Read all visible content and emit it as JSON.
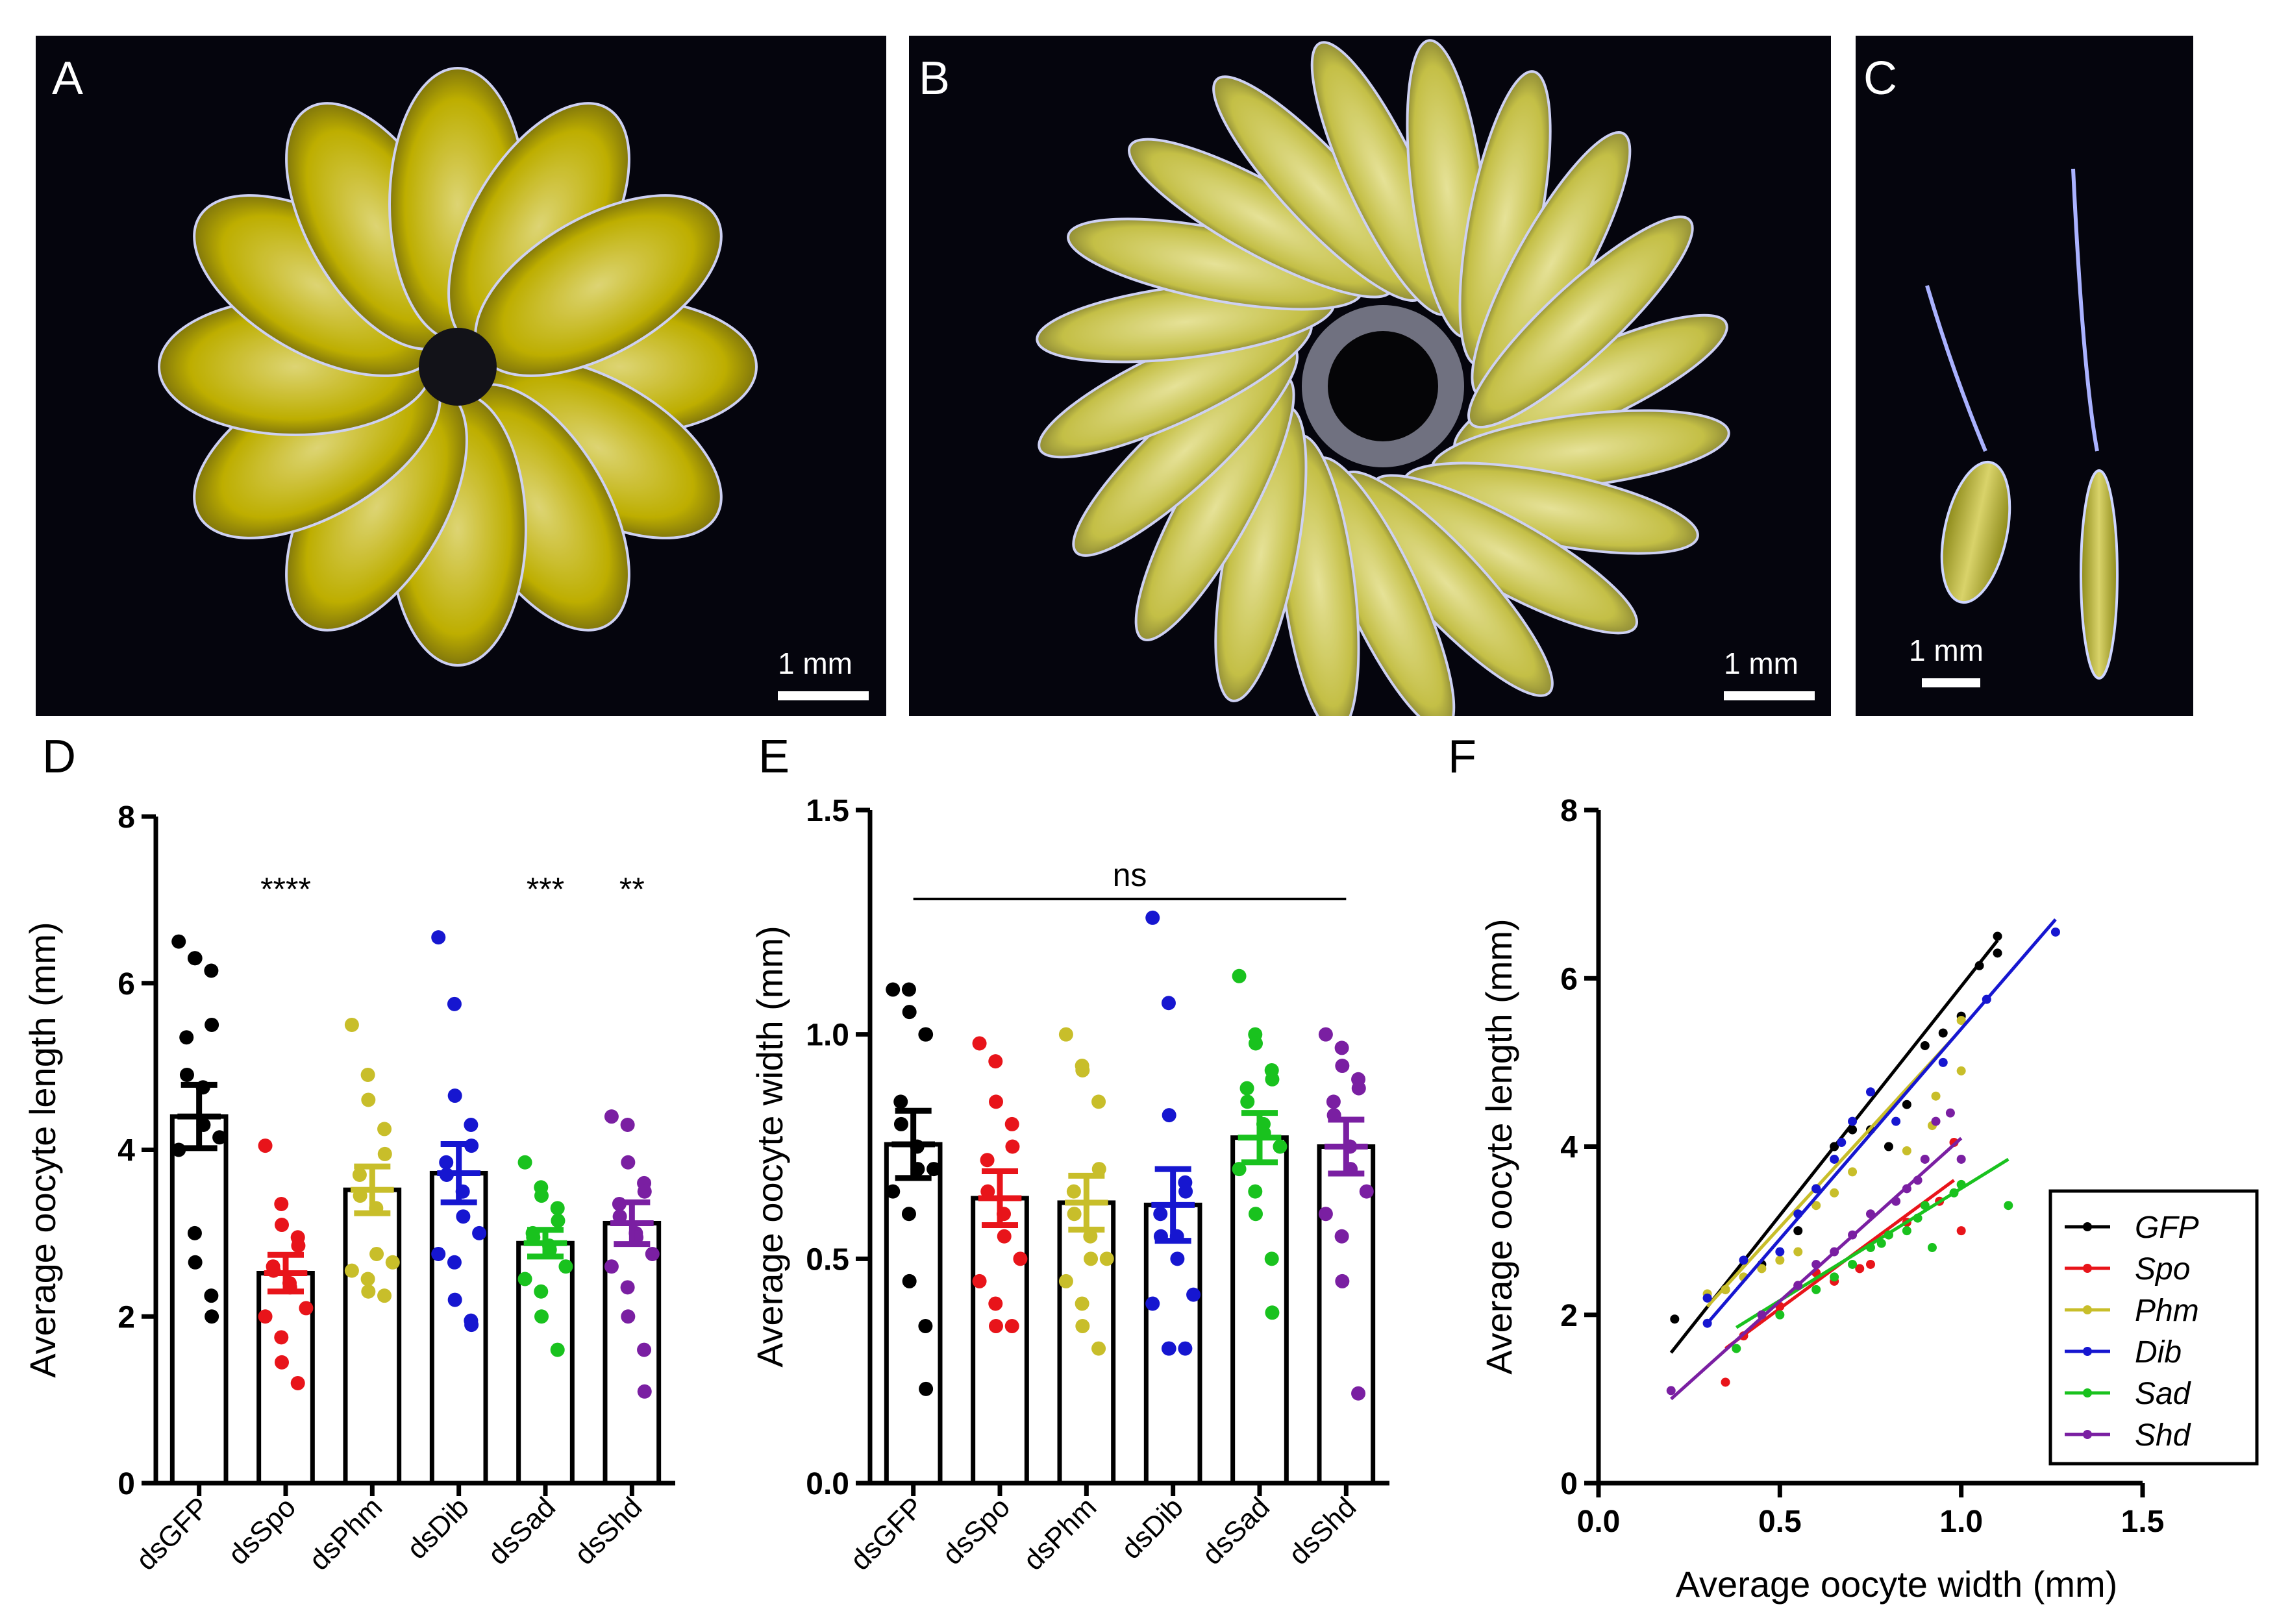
{
  "photos": [
    {
      "letter": "A",
      "scale_label": "1 mm",
      "description_color": "#c8b400"
    },
    {
      "letter": "B",
      "scale_label": "1 mm",
      "description_color": "#c9c45a"
    },
    {
      "letter": "C",
      "scale_label": "1 mm",
      "description_color": "#c0c06a"
    }
  ],
  "panel_letters": {
    "d": "D",
    "e": "E",
    "f": "F"
  },
  "groups": [
    "dsGFP",
    "dsSpo",
    "dsPhm",
    "dsDib",
    "dsSad",
    "dsShd"
  ],
  "colors": [
    "#000000",
    "#e8141a",
    "#c8be2a",
    "#1616d0",
    "#19c21e",
    "#7a1fa2"
  ],
  "chart_data": [
    {
      "id": "D",
      "type": "bar",
      "ylabel": "Average oocyte length (mm)",
      "ylim": [
        0,
        8
      ],
      "yticks": [
        "0",
        "2",
        "4",
        "6",
        "8"
      ],
      "categories": [
        "dsGFP",
        "dsSpo",
        "dsPhm",
        "dsDib",
        "dsSad",
        "dsShd"
      ],
      "means": [
        4.4,
        2.52,
        3.52,
        3.72,
        2.88,
        3.12
      ],
      "sem": [
        0.38,
        0.22,
        0.28,
        0.35,
        0.16,
        0.25
      ],
      "significance": [
        "",
        "****",
        "",
        "",
        "***",
        "**"
      ],
      "points": [
        [
          6.5,
          6.3,
          6.3,
          6.15,
          5.5,
          5.35,
          4.9,
          4.75,
          4.3,
          4.15,
          4.0,
          3.0,
          2.65,
          2.25,
          2.0
        ],
        [
          4.05,
          3.35,
          3.1,
          2.95,
          2.85,
          2.6,
          2.55,
          2.4,
          2.35,
          2.1,
          2.0,
          1.75,
          1.45,
          1.2
        ],
        [
          5.5,
          4.9,
          4.6,
          4.25,
          3.95,
          3.7,
          3.45,
          3.3,
          2.75,
          2.65,
          2.55,
          2.45,
          2.3,
          2.25
        ],
        [
          6.55,
          5.75,
          4.65,
          4.3,
          4.05,
          3.85,
          3.7,
          3.5,
          3.2,
          3.0,
          2.75,
          2.65,
          2.2,
          1.95,
          1.9
        ],
        [
          3.85,
          3.55,
          3.45,
          3.3,
          3.15,
          3.0,
          2.95,
          2.85,
          2.8,
          2.6,
          2.45,
          2.3,
          2.0,
          1.6
        ],
        [
          4.4,
          4.3,
          3.85,
          3.6,
          3.5,
          3.35,
          3.2,
          3.0,
          2.95,
          2.75,
          2.6,
          2.35,
          2.0,
          1.6,
          1.1
        ]
      ]
    },
    {
      "id": "E",
      "type": "bar",
      "ylabel": "Average oocyte width (mm)",
      "ylim": [
        0,
        1.5
      ],
      "yticks": [
        "0.0",
        "0.5",
        "1.0",
        "1.5"
      ],
      "categories": [
        "dsGFP",
        "dsSpo",
        "dsPhm",
        "dsDib",
        "dsSad",
        "dsShd"
      ],
      "means": [
        0.755,
        0.635,
        0.625,
        0.62,
        0.77,
        0.75
      ],
      "sem": [
        0.075,
        0.06,
        0.06,
        0.08,
        0.055,
        0.06
      ],
      "annotation": "ns",
      "points": [
        [
          1.1,
          1.1,
          1.05,
          1.0,
          1.0,
          0.85,
          0.8,
          0.75,
          0.7,
          0.7,
          0.65,
          0.6,
          0.45,
          0.35,
          0.21
        ],
        [
          0.98,
          0.94,
          0.85,
          0.8,
          0.75,
          0.72,
          0.65,
          0.6,
          0.55,
          0.5,
          0.45,
          0.4,
          0.35,
          0.35
        ],
        [
          1.0,
          0.93,
          0.92,
          0.85,
          0.7,
          0.65,
          0.6,
          0.55,
          0.5,
          0.5,
          0.45,
          0.4,
          0.35,
          0.3
        ],
        [
          1.26,
          1.07,
          0.82,
          0.67,
          0.65,
          0.6,
          0.55,
          0.55,
          0.5,
          0.42,
          0.4,
          0.3,
          0.3,
          0.3
        ],
        [
          1.13,
          1.0,
          0.98,
          0.92,
          0.9,
          0.88,
          0.85,
          0.8,
          0.78,
          0.75,
          0.7,
          0.65,
          0.6,
          0.5,
          0.38
        ],
        [
          1.0,
          0.97,
          0.93,
          0.9,
          0.88,
          0.85,
          0.82,
          0.75,
          0.7,
          0.65,
          0.6,
          0.55,
          0.45,
          0.2
        ]
      ]
    },
    {
      "id": "F",
      "type": "scatter",
      "xlabel": "Average oocyte width (mm)",
      "ylabel": "Average oocyte length (mm)",
      "xlim": [
        0,
        1.5
      ],
      "ylim": [
        0,
        8
      ],
      "xticks": [
        "0.0",
        "0.5",
        "1.0",
        "1.5"
      ],
      "yticks": [
        "0",
        "2",
        "4",
        "6",
        "8"
      ],
      "series": [
        {
          "name": "GFP",
          "color": "#000000",
          "points": [
            [
              0.21,
              1.95
            ],
            [
              0.35,
              2.3
            ],
            [
              0.45,
              2.6
            ],
            [
              0.55,
              3.0
            ],
            [
              0.6,
              3.5
            ],
            [
              0.65,
              4.0
            ],
            [
              0.7,
              4.2
            ],
            [
              0.75,
              4.2
            ],
            [
              0.8,
              4.0
            ],
            [
              0.85,
              4.5
            ],
            [
              0.9,
              5.2
            ],
            [
              0.95,
              5.35
            ],
            [
              1.0,
              5.55
            ],
            [
              1.05,
              6.15
            ],
            [
              1.1,
              6.3
            ],
            [
              1.1,
              6.5
            ]
          ],
          "fit": [
            [
              0.2,
              1.55
            ],
            [
              1.1,
              6.45
            ]
          ]
        },
        {
          "name": "Spo",
          "color": "#e8141a",
          "points": [
            [
              0.35,
              1.2
            ],
            [
              0.4,
              1.75
            ],
            [
              0.45,
              2.0
            ],
            [
              0.5,
              2.1
            ],
            [
              0.55,
              2.35
            ],
            [
              0.6,
              2.5
            ],
            [
              0.65,
              2.4
            ],
            [
              0.72,
              2.55
            ],
            [
              0.75,
              2.6
            ],
            [
              0.8,
              2.95
            ],
            [
              0.85,
              3.1
            ],
            [
              0.94,
              3.35
            ],
            [
              0.98,
              4.05
            ],
            [
              1.0,
              3.0
            ]
          ],
          "fit": [
            [
              0.35,
              1.6
            ],
            [
              0.98,
              3.6
            ]
          ]
        },
        {
          "name": "Phm",
          "color": "#c8be2a",
          "points": [
            [
              0.3,
              2.25
            ],
            [
              0.35,
              2.3
            ],
            [
              0.4,
              2.45
            ],
            [
              0.45,
              2.55
            ],
            [
              0.5,
              2.65
            ],
            [
              0.55,
              2.75
            ],
            [
              0.6,
              3.3
            ],
            [
              0.65,
              3.45
            ],
            [
              0.7,
              3.7
            ],
            [
              0.85,
              3.95
            ],
            [
              0.92,
              4.25
            ],
            [
              0.93,
              4.6
            ],
            [
              1.0,
              4.9
            ],
            [
              1.0,
              5.5
            ]
          ],
          "fit": [
            [
              0.3,
              2.1
            ],
            [
              0.98,
              5.3
            ]
          ]
        },
        {
          "name": "Dib",
          "color": "#1616d0",
          "points": [
            [
              0.3,
              1.9
            ],
            [
              0.3,
              2.2
            ],
            [
              0.4,
              2.65
            ],
            [
              0.5,
              2.75
            ],
            [
              0.55,
              3.2
            ],
            [
              0.6,
              3.5
            ],
            [
              0.65,
              3.85
            ],
            [
              0.67,
              4.05
            ],
            [
              0.7,
              4.3
            ],
            [
              0.75,
              4.65
            ],
            [
              0.82,
              4.3
            ],
            [
              0.95,
              5.0
            ],
            [
              1.07,
              5.75
            ],
            [
              1.26,
              6.55
            ]
          ],
          "fit": [
            [
              0.3,
              1.9
            ],
            [
              1.26,
              6.7
            ]
          ]
        },
        {
          "name": "Sad",
          "color": "#19c21e",
          "points": [
            [
              0.38,
              1.6
            ],
            [
              0.5,
              2.0
            ],
            [
              0.6,
              2.3
            ],
            [
              0.65,
              2.45
            ],
            [
              0.7,
              2.6
            ],
            [
              0.75,
              2.8
            ],
            [
              0.78,
              2.85
            ],
            [
              0.8,
              2.95
            ],
            [
              0.85,
              3.0
            ],
            [
              0.88,
              3.15
            ],
            [
              0.9,
              3.3
            ],
            [
              0.92,
              2.8
            ],
            [
              0.98,
              3.45
            ],
            [
              1.0,
              3.55
            ],
            [
              1.13,
              3.3
            ]
          ],
          "fit": [
            [
              0.38,
              1.85
            ],
            [
              1.13,
              3.85
            ]
          ]
        },
        {
          "name": "Shd",
          "color": "#7a1fa2",
          "points": [
            [
              0.2,
              1.1
            ],
            [
              0.45,
              2.0
            ],
            [
              0.55,
              2.35
            ],
            [
              0.6,
              2.6
            ],
            [
              0.65,
              2.75
            ],
            [
              0.7,
              2.95
            ],
            [
              0.75,
              3.2
            ],
            [
              0.82,
              3.35
            ],
            [
              0.85,
              3.5
            ],
            [
              0.88,
              3.6
            ],
            [
              0.9,
              3.85
            ],
            [
              0.93,
              4.3
            ],
            [
              0.97,
              4.4
            ],
            [
              1.0,
              3.85
            ]
          ],
          "fit": [
            [
              0.2,
              1.0
            ],
            [
              1.0,
              4.1
            ]
          ]
        }
      ],
      "legend": [
        "GFP",
        "Spo",
        "Phm",
        "Dib",
        "Sad",
        "Shd"
      ],
      "legend_position": "right"
    }
  ]
}
